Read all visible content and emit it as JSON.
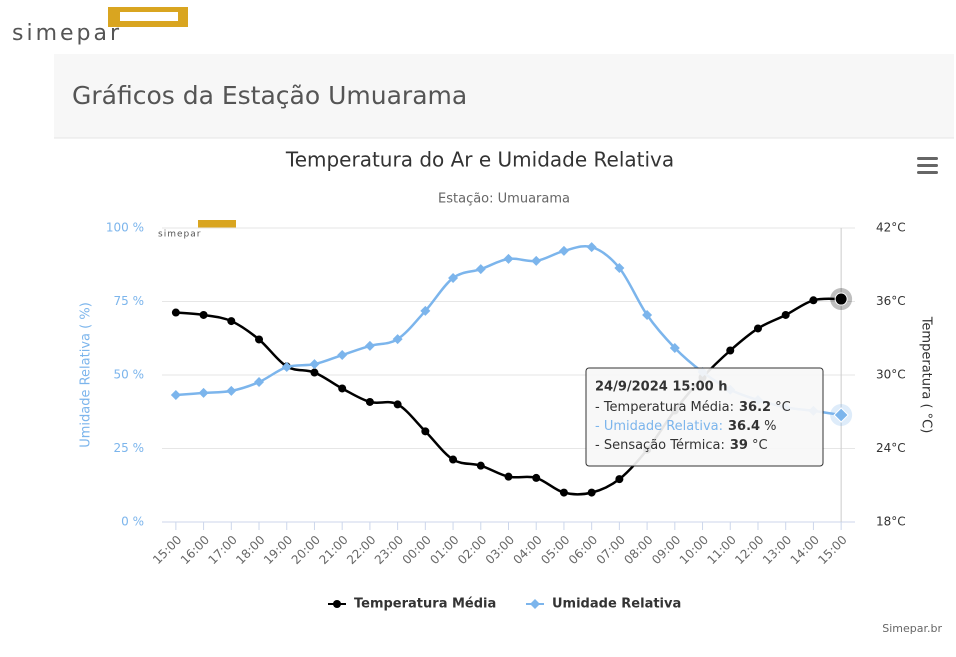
{
  "page": {
    "logo": "simepar",
    "header": "Gráficos da Estação Umuarama",
    "credit": "Simepar.br"
  },
  "chart_data": {
    "type": "line",
    "title": "Temperatura do Ar e Umidade Relativa",
    "subtitle": "Estação: Umuarama",
    "watermark": "simepar",
    "categories": [
      "15:00",
      "16:00",
      "17:00",
      "18:00",
      "19:00",
      "20:00",
      "21:00",
      "22:00",
      "23:00",
      "00:00",
      "01:00",
      "02:00",
      "03:00",
      "04:00",
      "05:00",
      "06:00",
      "07:00",
      "08:00",
      "09:00",
      "10:00",
      "11:00",
      "12:00",
      "13:00",
      "14:00",
      "15:00"
    ],
    "ylabel": "Umidade Relativa ( %)",
    "y2label": "Temperatura ( °C)",
    "ylim": [
      0,
      100
    ],
    "yticks": [
      {
        "value": 0,
        "label": "0 %"
      },
      {
        "value": 25,
        "label": "25 %"
      },
      {
        "value": 50,
        "label": "50 %"
      },
      {
        "value": 75,
        "label": "75 %"
      },
      {
        "value": 100,
        "label": "100 %"
      }
    ],
    "y2lim": [
      18,
      42
    ],
    "y2ticks": [
      {
        "value": 18,
        "label": "18°C"
      },
      {
        "value": 24,
        "label": "24°C"
      },
      {
        "value": 30,
        "label": "30°C"
      },
      {
        "value": 36,
        "label": "36°C"
      },
      {
        "value": 42,
        "label": "42°C"
      }
    ],
    "grid": true,
    "series": [
      {
        "name": "Temperatura Média",
        "color": "#000000",
        "axis": "y2",
        "marker": "circle",
        "values": [
          35.1,
          34.9,
          34.4,
          32.9,
          30.7,
          30.2,
          28.9,
          27.8,
          27.6,
          25.4,
          23.1,
          22.6,
          21.7,
          21.6,
          20.4,
          20.4,
          21.5,
          23.9,
          27.1,
          29.8,
          32.0,
          33.8,
          34.9,
          36.1,
          36.2
        ]
      },
      {
        "name": "Umidade Relativa",
        "color": "#7cb5ec",
        "marker": "diamond",
        "values": [
          43.2,
          43.9,
          44.6,
          47.6,
          52.7,
          53.7,
          56.8,
          59.9,
          62.2,
          71.8,
          83.0,
          86.0,
          89.5,
          88.8,
          92.2,
          93.5,
          86.4,
          70.4,
          59.2,
          51.0,
          45.0,
          41.5,
          39.0,
          37.8,
          36.4
        ]
      }
    ],
    "tooltip": {
      "title": "24/9/2024 15:00 h",
      "rows": [
        {
          "label": "- Temperatura Média:",
          "value": 36.2,
          "unit": "°C"
        },
        {
          "label": "- Umidade Relativa:",
          "value": 36.4,
          "unit": "%"
        },
        {
          "label": "- Sensação Térmica:",
          "value": 39,
          "unit": "°C"
        }
      ]
    }
  }
}
